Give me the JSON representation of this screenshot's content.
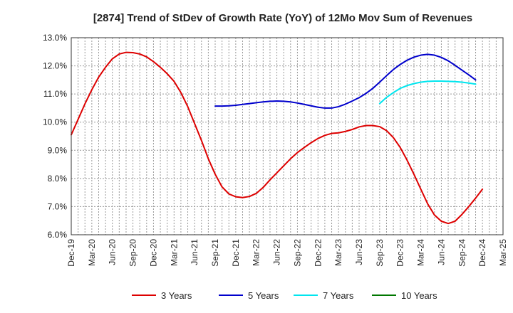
{
  "chart_data": {
    "type": "line",
    "title": "[2874]  Trend of StDev of Growth Rate (YoY) of 12Mo Mov Sum of Revenues",
    "xlabel": "",
    "ylabel": "",
    "ylim": [
      6.0,
      13.0
    ],
    "yticks": [
      "6.0%",
      "7.0%",
      "8.0%",
      "9.0%",
      "10.0%",
      "11.0%",
      "12.0%",
      "13.0%"
    ],
    "xticks": [
      "Dec-19",
      "Mar-20",
      "Jun-20",
      "Sep-20",
      "Dec-20",
      "Mar-21",
      "Jun-21",
      "Sep-21",
      "Dec-21",
      "Mar-22",
      "Jun-22",
      "Sep-22",
      "Dec-22",
      "Mar-23",
      "Jun-23",
      "Sep-23",
      "Dec-23",
      "Mar-24",
      "Jun-24",
      "Sep-24",
      "Dec-24",
      "Mar-25"
    ],
    "grid": true,
    "legend_position": "bottom",
    "series": [
      {
        "name": "3 Years",
        "color": "#dd0000",
        "start_month_index": 0,
        "values": [
          9.55,
          10.1,
          10.65,
          11.15,
          11.6,
          11.95,
          12.25,
          12.42,
          12.48,
          12.47,
          12.42,
          12.32,
          12.15,
          11.95,
          11.72,
          11.45,
          11.05,
          10.55,
          9.95,
          9.35,
          8.7,
          8.15,
          7.7,
          7.45,
          7.35,
          7.32,
          7.36,
          7.47,
          7.68,
          7.95,
          8.2,
          8.45,
          8.7,
          8.92,
          9.1,
          9.27,
          9.42,
          9.53,
          9.6,
          9.62,
          9.67,
          9.74,
          9.83,
          9.88,
          9.88,
          9.84,
          9.7,
          9.45,
          9.1,
          8.65,
          8.15,
          7.62,
          7.1,
          6.7,
          6.48,
          6.4,
          6.48,
          6.72,
          7.0,
          7.3,
          7.62
        ]
      },
      {
        "name": "5 Years",
        "color": "#0000cc",
        "start_month_index": 21,
        "values": [
          10.57,
          10.57,
          10.58,
          10.6,
          10.63,
          10.66,
          10.69,
          10.72,
          10.74,
          10.75,
          10.74,
          10.72,
          10.68,
          10.63,
          10.58,
          10.53,
          10.5,
          10.5,
          10.55,
          10.64,
          10.75,
          10.87,
          11.02,
          11.2,
          11.42,
          11.65,
          11.87,
          12.05,
          12.2,
          12.31,
          12.38,
          12.41,
          12.38,
          12.3,
          12.18,
          12.02,
          11.85,
          11.68,
          11.5
        ]
      },
      {
        "name": "7 Years",
        "color": "#00e5ee",
        "start_month_index": 45,
        "values": [
          10.66,
          10.88,
          11.05,
          11.2,
          11.3,
          11.37,
          11.42,
          11.45,
          11.46,
          11.46,
          11.45,
          11.44,
          11.42,
          11.39,
          11.35
        ]
      },
      {
        "name": "10 Years",
        "color": "#007700",
        "start_month_index": 0,
        "values": []
      }
    ]
  }
}
